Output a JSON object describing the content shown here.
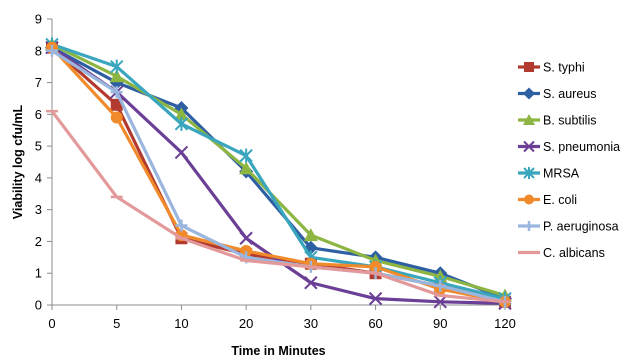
{
  "chart_data": {
    "type": "line",
    "title": "",
    "xlabel": "Time in Minutes",
    "ylabel": "Viability log cfu/mL",
    "categories": [
      "0",
      "5",
      "10",
      "20",
      "30",
      "60",
      "90",
      "120"
    ],
    "ylim": [
      0,
      9
    ],
    "yticks": [
      "0",
      "1",
      "2",
      "3",
      "4",
      "5",
      "6",
      "7",
      "8",
      "9"
    ],
    "grid": false,
    "legend": "right",
    "series": [
      {
        "name": "S. typhi",
        "color": "#b23a2e",
        "marker": "square",
        "values": [
          8.1,
          6.3,
          2.1,
          1.6,
          1.3,
          1.0,
          0.6,
          0.1
        ]
      },
      {
        "name": "S. aureus",
        "color": "#2e5fa3",
        "marker": "diamond",
        "values": [
          8.1,
          7.0,
          6.2,
          4.2,
          1.8,
          1.5,
          1.0,
          0.2
        ]
      },
      {
        "name": "B. subtilis",
        "color": "#8db542",
        "marker": "triangle",
        "values": [
          8.2,
          7.2,
          6.0,
          4.3,
          2.2,
          1.4,
          0.9,
          0.3
        ]
      },
      {
        "name": "S. pneumonia",
        "color": "#6b3f96",
        "marker": "x",
        "values": [
          8.1,
          6.7,
          4.8,
          2.1,
          0.7,
          0.2,
          0.1,
          0.05
        ]
      },
      {
        "name": "MRSA",
        "color": "#3aa6bd",
        "marker": "star",
        "values": [
          8.2,
          7.5,
          5.7,
          4.7,
          1.5,
          1.2,
          0.7,
          0.2
        ]
      },
      {
        "name": "E. coli",
        "color": "#f08a2a",
        "marker": "circle",
        "values": [
          8.1,
          5.9,
          2.2,
          1.7,
          1.3,
          1.2,
          0.5,
          0.1
        ]
      },
      {
        "name": "P. aeruginosa",
        "color": "#9ab6de",
        "marker": "plus",
        "values": [
          8.0,
          6.7,
          2.5,
          1.5,
          1.2,
          1.0,
          0.6,
          0.1
        ]
      },
      {
        "name": "C. albicans",
        "color": "#e39999",
        "marker": "dash",
        "values": [
          6.1,
          3.4,
          2.1,
          1.4,
          1.2,
          1.0,
          0.3,
          0.1
        ]
      }
    ]
  }
}
